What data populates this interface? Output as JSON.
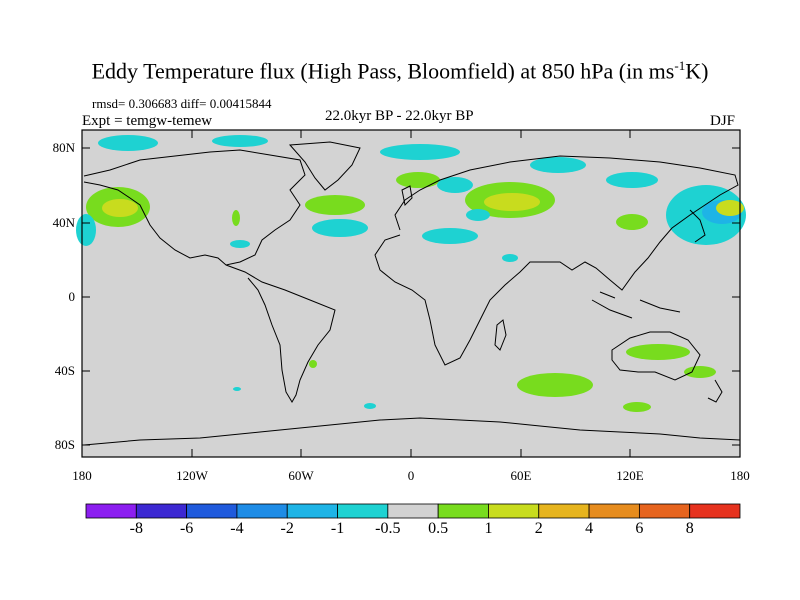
{
  "title": {
    "main": "Eddy Temperature flux (High Pass, Bloomfield) at 850 hPa (in ms",
    "sup": "-1",
    "end": "K)"
  },
  "stats": "rmsd= 0.306683  diff= 0.00415844",
  "expt": "Expt = temgw-temew",
  "period": "22.0kyr BP - 22.0kyr BP",
  "season": "DJF",
  "lat_labels": [
    "80N",
    "40N",
    "0",
    "40S",
    "80S"
  ],
  "lon_labels": [
    "180",
    "120W",
    "60W",
    "0",
    "60E",
    "120E",
    "180"
  ],
  "colorbar": {
    "labels": [
      "-8",
      "-6",
      "-4",
      "-2",
      "-1",
      "-0.5",
      "0.5",
      "1",
      "2",
      "4",
      "6",
      "8"
    ],
    "colors": [
      "#8c1ef0",
      "#3c28d2",
      "#1f5adc",
      "#1e8ce6",
      "#1eb4e6",
      "#1ed2d2",
      "#d2d2d2",
      "#78dc1e",
      "#c8dc1e",
      "#e6b41e",
      "#e68c1e",
      "#e6641e",
      "#e6321e"
    ]
  },
  "map": {
    "background": "#d3d3d3",
    "land_outline": "#000000"
  }
}
